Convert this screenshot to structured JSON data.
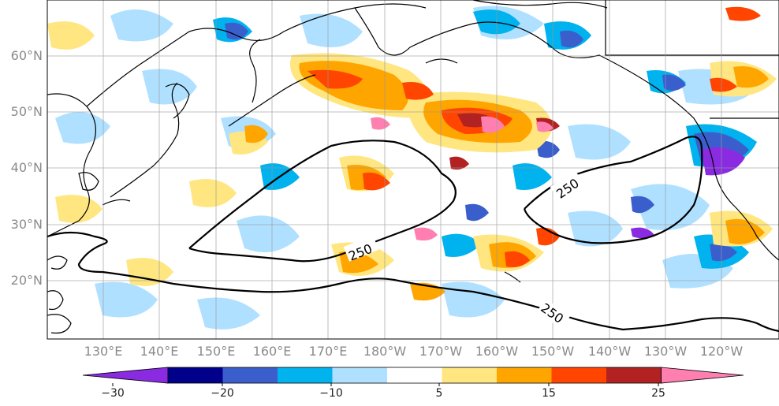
{
  "map": {
    "lat_labels": [
      "60°N",
      "50°N",
      "40°N",
      "30°N",
      "20°N"
    ],
    "lon_labels": [
      "130°E",
      "140°E",
      "150°E",
      "160°E",
      "170°E",
      "180°W",
      "170°W",
      "160°W",
      "150°W",
      "140°W",
      "130°W",
      "120°W"
    ],
    "contour_labels": [
      "250",
      "250",
      "250"
    ]
  },
  "colorbar": {
    "tick_labels": [
      "−30",
      "−20",
      "−10",
      "5",
      "15",
      "25"
    ],
    "colors": [
      "#8a2be2",
      "#00008b",
      "#3a5fcd",
      "#00b2ee",
      "#b0e0ff",
      "#ffffff",
      "#ffe680",
      "#ffa500",
      "#ff4500",
      "#b22222",
      "#ff7fb0"
    ]
  }
}
